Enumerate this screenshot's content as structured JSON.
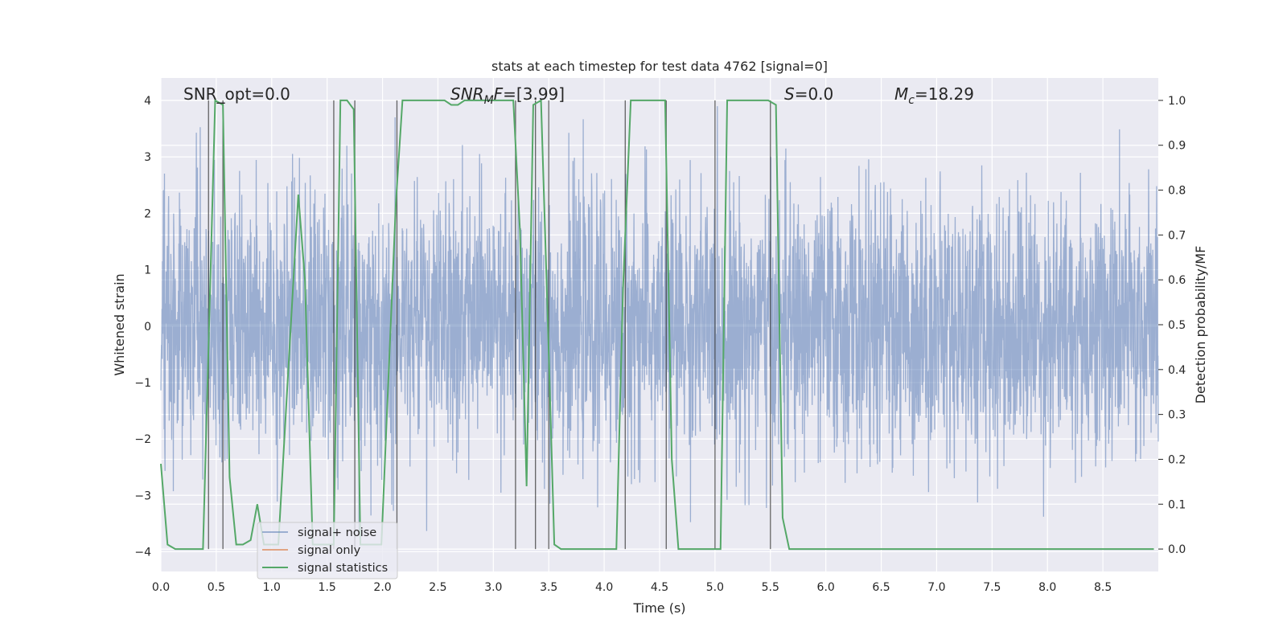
{
  "chart_data": {
    "type": "line",
    "title": "stats at each timestep for test data 4762 [signal=0]",
    "xlabel": "Time (s)",
    "ylabel_left": "Whitened strain",
    "ylabel_right": "Detection probability/MF",
    "xlim": [
      0.0,
      9.0
    ],
    "ylim_left": [
      -4.35,
      4.4
    ],
    "ylim_right": [
      -0.05,
      1.05
    ],
    "x_ticks": [
      0.0,
      0.5,
      1.0,
      1.5,
      2.0,
      2.5,
      3.0,
      3.5,
      4.0,
      4.5,
      5.0,
      5.5,
      6.0,
      6.5,
      7.0,
      7.5,
      8.0,
      8.5
    ],
    "y_ticks_left": [
      -4,
      -3,
      -2,
      -1,
      0,
      1,
      2,
      3,
      4
    ],
    "y_ticks_right": [
      0.0,
      0.1,
      0.2,
      0.3,
      0.4,
      0.5,
      0.6,
      0.7,
      0.8,
      0.9,
      1.0
    ],
    "grid": true,
    "legend_position": "lower-left",
    "annotations": {
      "snr_opt": "SNR_opt=0.0",
      "snr_mf": "=[3.99]",
      "snr_mf_sym": "SNR",
      "snr_mf_sub": "M",
      "snr_mf_tail": "F",
      "s_sym": "S",
      "s_val": "=0.0",
      "mc_sym": "M",
      "mc_sub": "c",
      "mc_val": "=18.29"
    },
    "series": [
      {
        "name": "signal+ noise",
        "color": "#4c72b0",
        "axis": "left",
        "style": "dense noise, amplitude envelope about ±2.5, peaks to ±3.8"
      },
      {
        "name": "signal only",
        "color": "#dd8452",
        "axis": "left",
        "x": [],
        "y": []
      },
      {
        "name": "signal statistics",
        "color": "#55a868",
        "axis": "right",
        "x": [
          0.0,
          0.06,
          0.13,
          0.38,
          0.43,
          0.49,
          0.56,
          0.62,
          0.68,
          0.74,
          0.81,
          0.87,
          0.93,
          1.06,
          1.24,
          1.3,
          1.37,
          1.56,
          1.62,
          1.68,
          1.74,
          1.8,
          1.87,
          1.99,
          2.12,
          2.18,
          2.24,
          2.56,
          2.62,
          2.68,
          2.74,
          2.8,
          2.86,
          2.93,
          3.18,
          3.24,
          3.3,
          3.36,
          3.43,
          3.49,
          3.55,
          3.61,
          3.67,
          3.74,
          4.11,
          4.17,
          4.24,
          4.3,
          4.55,
          4.61,
          4.67,
          4.74,
          4.99,
          5.05,
          5.11,
          5.48,
          5.55,
          5.61,
          5.67,
          5.74,
          8.96
        ],
        "y": [
          0.19,
          0.01,
          0.0,
          0.0,
          0.45,
          1.0,
          0.99,
          0.16,
          0.01,
          0.01,
          0.02,
          0.1,
          0.01,
          0.01,
          0.79,
          0.6,
          0.01,
          0.01,
          1.0,
          1.0,
          0.98,
          0.01,
          0.01,
          0.01,
          0.77,
          1.0,
          1.0,
          1.0,
          0.99,
          0.99,
          1.0,
          1.0,
          1.0,
          1.0,
          1.0,
          0.71,
          0.14,
          0.99,
          1.0,
          0.52,
          0.01,
          0.0,
          0.0,
          0.0,
          0.0,
          0.58,
          1.0,
          1.0,
          1.0,
          0.2,
          0.0,
          0.0,
          0.0,
          0.0,
          1.0,
          1.0,
          0.99,
          0.07,
          0.0,
          0.0,
          0.0
        ]
      }
    ],
    "vertical_lines_x": [
      0.43,
      0.56,
      1.56,
      1.75,
      2.13,
      3.2,
      3.38,
      3.5,
      4.19,
      4.56,
      5.0,
      5.5
    ]
  }
}
